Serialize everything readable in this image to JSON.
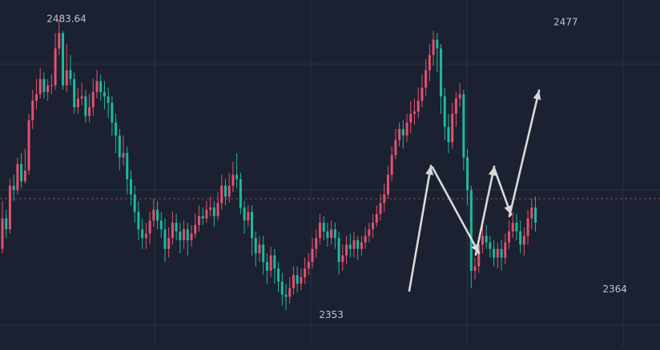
{
  "colors": {
    "background": "#1b2130",
    "grid": "#2a3344",
    "up": "#e3516d",
    "down": "#1cb9a0",
    "annotation": "#d9d9d9",
    "label": "#bfc3ca",
    "price_line": "#8a4a55"
  },
  "chart_data": {
    "type": "candlestick",
    "title": "",
    "xlabel": "",
    "ylabel": "",
    "ylim": [
      2343,
      2490
    ],
    "grid": true,
    "current_price": 2401,
    "annotations": [
      {
        "name": "high-label",
        "text": "2483.64",
        "index": 10,
        "value": 2483.64
      },
      {
        "name": "peak-label",
        "text": "2477",
        "index": 149,
        "value": 2477
      },
      {
        "name": "low-label",
        "text": "2353",
        "index": 87,
        "value": 2353
      },
      {
        "name": "swing-low-label",
        "text": "2364",
        "index": 162,
        "value": 2364
      }
    ],
    "candles": [
      [
        2378,
        2392,
        2400,
        2376
      ],
      [
        2392,
        2387,
        2396,
        2383
      ],
      [
        2387,
        2407,
        2410,
        2385
      ],
      [
        2407,
        2405,
        2412,
        2400
      ],
      [
        2405,
        2417,
        2420,
        2403
      ],
      [
        2417,
        2409,
        2422,
        2406
      ],
      [
        2409,
        2414,
        2424,
        2408
      ],
      [
        2414,
        2437,
        2440,
        2412
      ],
      [
        2437,
        2446,
        2451,
        2433
      ],
      [
        2446,
        2449,
        2456,
        2442
      ],
      [
        2449,
        2456,
        2461,
        2447
      ],
      [
        2456,
        2450,
        2459,
        2447
      ],
      [
        2450,
        2453,
        2456,
        2446
      ],
      [
        2453,
        2453,
        2458,
        2449
      ],
      [
        2453,
        2470,
        2477,
        2451
      ],
      [
        2470,
        2477,
        2483,
        2467
      ],
      [
        2477,
        2453,
        2478,
        2451
      ],
      [
        2453,
        2460,
        2472,
        2450
      ],
      [
        2460,
        2456,
        2467,
        2453
      ],
      [
        2456,
        2443,
        2459,
        2440
      ],
      [
        2443,
        2447,
        2452,
        2440
      ],
      [
        2447,
        2448,
        2454,
        2444
      ],
      [
        2448,
        2439,
        2451,
        2436
      ],
      [
        2439,
        2443,
        2449,
        2436
      ],
      [
        2443,
        2450,
        2456,
        2439
      ],
      [
        2450,
        2455,
        2460,
        2447
      ],
      [
        2455,
        2450,
        2458,
        2446
      ],
      [
        2450,
        2448,
        2455,
        2442
      ],
      [
        2448,
        2445,
        2452,
        2438
      ],
      [
        2445,
        2436,
        2448,
        2430
      ],
      [
        2436,
        2430,
        2440,
        2422
      ],
      [
        2430,
        2420,
        2433,
        2414
      ],
      [
        2420,
        2422,
        2430,
        2416
      ],
      [
        2422,
        2410,
        2425,
        2403
      ],
      [
        2410,
        2403,
        2414,
        2398
      ],
      [
        2403,
        2395,
        2407,
        2390
      ],
      [
        2395,
        2387,
        2400,
        2382
      ],
      [
        2387,
        2383,
        2392,
        2378
      ],
      [
        2383,
        2385,
        2390,
        2378
      ],
      [
        2385,
        2391,
        2395,
        2380
      ],
      [
        2391,
        2396,
        2401,
        2388
      ],
      [
        2396,
        2391,
        2400,
        2387
      ],
      [
        2391,
        2387,
        2395,
        2383
      ],
      [
        2387,
        2378,
        2392,
        2372
      ],
      [
        2378,
        2383,
        2388,
        2374
      ],
      [
        2383,
        2390,
        2395,
        2380
      ],
      [
        2390,
        2386,
        2394,
        2382
      ],
      [
        2386,
        2382,
        2390,
        2376
      ],
      [
        2382,
        2387,
        2391,
        2378
      ],
      [
        2387,
        2382,
        2390,
        2375
      ],
      [
        2382,
        2385,
        2389,
        2379
      ],
      [
        2385,
        2389,
        2394,
        2383
      ],
      [
        2389,
        2393,
        2398,
        2386
      ],
      [
        2393,
        2392,
        2397,
        2389
      ],
      [
        2392,
        2396,
        2400,
        2390
      ],
      [
        2396,
        2397,
        2402,
        2393
      ],
      [
        2397,
        2393,
        2400,
        2388
      ],
      [
        2393,
        2399,
        2404,
        2391
      ],
      [
        2399,
        2407,
        2412,
        2396
      ],
      [
        2407,
        2402,
        2410,
        2398
      ],
      [
        2402,
        2407,
        2413,
        2399
      ],
      [
        2407,
        2412,
        2418,
        2404
      ],
      [
        2412,
        2410,
        2422,
        2406
      ],
      [
        2410,
        2397,
        2413,
        2394
      ],
      [
        2397,
        2391,
        2400,
        2385
      ],
      [
        2391,
        2395,
        2398,
        2388
      ],
      [
        2395,
        2383,
        2398,
        2375
      ],
      [
        2383,
        2376,
        2386,
        2370
      ],
      [
        2376,
        2380,
        2384,
        2372
      ],
      [
        2380,
        2372,
        2384,
        2366
      ],
      [
        2372,
        2368,
        2376,
        2362
      ],
      [
        2368,
        2375,
        2379,
        2365
      ],
      [
        2375,
        2369,
        2378,
        2362
      ],
      [
        2369,
        2363,
        2372,
        2358
      ],
      [
        2363,
        2357,
        2367,
        2352
      ],
      [
        2357,
        2356,
        2362,
        2350
      ],
      [
        2356,
        2360,
        2365,
        2353
      ],
      [
        2360,
        2366,
        2370,
        2357
      ],
      [
        2366,
        2362,
        2370,
        2358
      ],
      [
        2362,
        2365,
        2369,
        2359
      ],
      [
        2365,
        2369,
        2374,
        2362
      ],
      [
        2369,
        2372,
        2376,
        2366
      ],
      [
        2372,
        2378,
        2383,
        2369
      ],
      [
        2378,
        2383,
        2387,
        2374
      ],
      [
        2383,
        2390,
        2394,
        2380
      ],
      [
        2390,
        2386,
        2393,
        2382
      ],
      [
        2386,
        2383,
        2390,
        2379
      ],
      [
        2383,
        2387,
        2391,
        2380
      ],
      [
        2387,
        2383,
        2390,
        2378
      ],
      [
        2383,
        2372,
        2386,
        2366
      ],
      [
        2372,
        2375,
        2380,
        2368
      ],
      [
        2375,
        2380,
        2384,
        2371
      ],
      [
        2380,
        2378,
        2385,
        2374
      ],
      [
        2378,
        2382,
        2386,
        2374
      ],
      [
        2382,
        2378,
        2384,
        2373
      ],
      [
        2378,
        2381,
        2384,
        2375
      ],
      [
        2381,
        2384,
        2388,
        2378
      ],
      [
        2384,
        2387,
        2390,
        2381
      ],
      [
        2387,
        2390,
        2394,
        2383
      ],
      [
        2390,
        2394,
        2398,
        2388
      ],
      [
        2394,
        2399,
        2403,
        2391
      ],
      [
        2399,
        2403,
        2408,
        2395
      ],
      [
        2403,
        2412,
        2416,
        2401
      ],
      [
        2412,
        2421,
        2425,
        2409
      ],
      [
        2421,
        2428,
        2433,
        2419
      ],
      [
        2428,
        2433,
        2436,
        2425
      ],
      [
        2433,
        2430,
        2437,
        2424
      ],
      [
        2430,
        2436,
        2440,
        2427
      ],
      [
        2436,
        2440,
        2446,
        2431
      ],
      [
        2440,
        2441,
        2447,
        2435
      ],
      [
        2441,
        2446,
        2452,
        2438
      ],
      [
        2446,
        2452,
        2458,
        2443
      ],
      [
        2452,
        2460,
        2465,
        2448
      ],
      [
        2460,
        2467,
        2472,
        2455
      ],
      [
        2467,
        2474,
        2478,
        2462
      ],
      [
        2474,
        2470,
        2477,
        2459
      ],
      [
        2470,
        2448,
        2472,
        2440
      ],
      [
        2448,
        2434,
        2452,
        2428
      ],
      [
        2434,
        2427,
        2440,
        2422
      ],
      [
        2427,
        2440,
        2445,
        2424
      ],
      [
        2440,
        2447,
        2450,
        2434
      ],
      [
        2447,
        2449,
        2454,
        2443
      ],
      [
        2449,
        2420,
        2451,
        2414
      ],
      [
        2420,
        2405,
        2424,
        2398
      ],
      [
        2405,
        2368,
        2407,
        2360
      ],
      [
        2368,
        2370,
        2374,
        2364
      ],
      [
        2370,
        2380,
        2383,
        2367
      ],
      [
        2380,
        2384,
        2390,
        2376
      ],
      [
        2384,
        2381,
        2389,
        2378
      ],
      [
        2381,
        2378,
        2384,
        2374
      ],
      [
        2378,
        2374,
        2382,
        2370
      ],
      [
        2374,
        2378,
        2381,
        2369
      ],
      [
        2378,
        2374,
        2382,
        2368
      ],
      [
        2374,
        2381,
        2385,
        2371
      ],
      [
        2381,
        2386,
        2391,
        2378
      ],
      [
        2386,
        2390,
        2395,
        2383
      ],
      [
        2390,
        2386,
        2394,
        2382
      ],
      [
        2386,
        2380,
        2391,
        2376
      ],
      [
        2380,
        2384,
        2388,
        2375
      ],
      [
        2384,
        2392,
        2396,
        2380
      ],
      [
        2392,
        2397,
        2401,
        2387
      ],
      [
        2397,
        2390,
        2402,
        2386
      ]
    ]
  }
}
